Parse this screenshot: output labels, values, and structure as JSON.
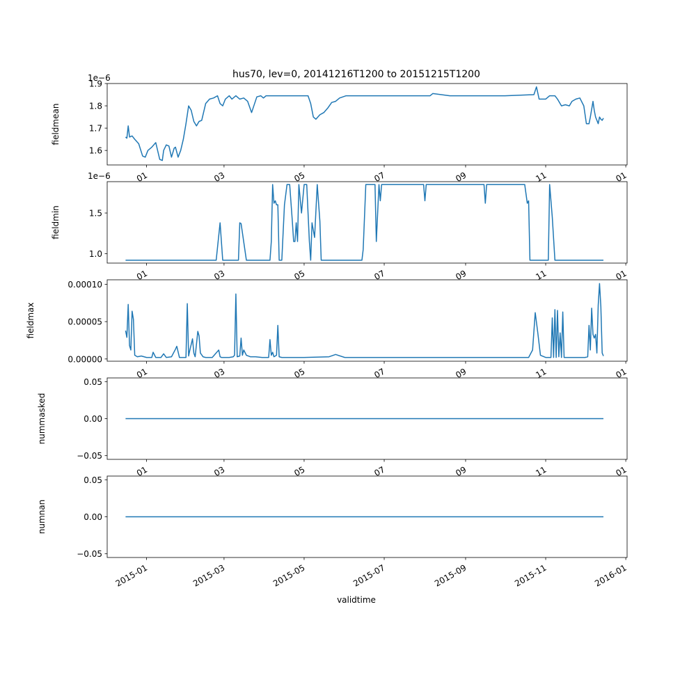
{
  "figure": {
    "title": "hus70, lev=0, 20141216T1200 to 20151215T1200",
    "xlabel": "validtime",
    "line_color": "#1f77b4"
  },
  "chart_data": [
    {
      "type": "line",
      "ylabel": "fieldmean",
      "offset_text": "1e−6",
      "xlim": [
        "2014-12-02",
        "2016-01-02"
      ],
      "ylim": [
        1.535,
        1.9
      ],
      "yticks": [
        1.6,
        1.7,
        1.8,
        1.9
      ],
      "ytick_labels": [
        "1.6",
        "1.7",
        "1.8",
        "1.9"
      ],
      "xticks": [
        "2015-01-01",
        "2015-03-01",
        "2015-05-01",
        "2015-07-01",
        "2015-09-01",
        "2015-11-01",
        "2016-01-01"
      ],
      "xtick_labels": [
        "01",
        "03",
        "05",
        "07",
        "09",
        "11",
        "01"
      ],
      "series": [
        {
          "x": [
            "2014-12-16",
            "2014-12-17",
            "2014-12-18",
            "2014-12-19",
            "2014-12-21",
            "2014-12-23",
            "2014-12-26",
            "2014-12-29",
            "2014-12-31",
            "2015-01-02",
            "2015-01-05",
            "2015-01-08",
            "2015-01-11",
            "2015-01-13",
            "2015-01-14",
            "2015-01-16",
            "2015-01-18",
            "2015-01-20",
            "2015-01-22",
            "2015-01-23",
            "2015-01-25",
            "2015-01-27",
            "2015-01-29",
            "2015-01-31",
            "2015-02-02",
            "2015-02-04",
            "2015-02-06",
            "2015-02-08",
            "2015-02-10",
            "2015-02-12",
            "2015-02-15",
            "2015-02-18",
            "2015-02-21",
            "2015-02-24",
            "2015-02-26",
            "2015-02-28",
            "2015-03-02",
            "2015-03-05",
            "2015-03-07",
            "2015-03-10",
            "2015-03-13",
            "2015-03-16",
            "2015-03-19",
            "2015-03-22",
            "2015-03-26",
            "2015-03-29",
            "2015-03-31",
            "2015-04-02",
            "2015-04-05",
            "2015-04-10",
            "2015-04-20",
            "2015-05-01",
            "2015-05-04",
            "2015-05-06",
            "2015-05-08",
            "2015-05-10",
            "2015-05-13",
            "2015-05-16",
            "2015-05-19",
            "2015-05-22",
            "2015-05-25",
            "2015-05-28",
            "2015-06-02",
            "2015-06-07",
            "2015-06-12",
            "2015-06-16",
            "2015-07-01",
            "2015-07-15",
            "2015-08-01",
            "2015-08-05",
            "2015-08-07",
            "2015-08-20",
            "2015-09-01",
            "2015-10-01",
            "2015-10-23",
            "2015-10-25",
            "2015-10-27",
            "2015-11-01",
            "2015-11-04",
            "2015-11-08",
            "2015-11-10",
            "2015-11-13",
            "2015-11-16",
            "2015-11-19",
            "2015-11-21",
            "2015-11-24",
            "2015-11-27",
            "2015-11-30",
            "2015-12-02",
            "2015-12-04",
            "2015-12-05",
            "2015-12-07",
            "2015-12-08",
            "2015-12-09",
            "2015-12-11",
            "2015-12-12",
            "2015-12-13",
            "2015-12-14",
            "2015-12-15"
          ],
          "y": [
            1.66,
            1.655,
            1.71,
            1.66,
            1.665,
            1.65,
            1.63,
            1.575,
            1.57,
            1.6,
            1.615,
            1.635,
            1.56,
            1.555,
            1.6,
            1.625,
            1.62,
            1.57,
            1.61,
            1.615,
            1.57,
            1.6,
            1.65,
            1.72,
            1.8,
            1.78,
            1.73,
            1.71,
            1.73,
            1.735,
            1.81,
            1.83,
            1.835,
            1.845,
            1.81,
            1.8,
            1.83,
            1.845,
            1.83,
            1.845,
            1.83,
            1.835,
            1.82,
            1.77,
            1.84,
            1.845,
            1.835,
            1.845,
            1.845,
            1.845,
            1.845,
            1.845,
            1.845,
            1.81,
            1.75,
            1.74,
            1.76,
            1.77,
            1.79,
            1.815,
            1.82,
            1.835,
            1.845,
            1.845,
            1.845,
            1.845,
            1.845,
            1.845,
            1.845,
            1.845,
            1.855,
            1.845,
            1.845,
            1.845,
            1.85,
            1.885,
            1.83,
            1.83,
            1.845,
            1.845,
            1.83,
            1.8,
            1.805,
            1.8,
            1.82,
            1.83,
            1.835,
            1.8,
            1.72,
            1.72,
            1.75,
            1.82,
            1.78,
            1.75,
            1.72,
            1.75,
            1.74,
            1.735,
            1.745
          ]
        }
      ]
    },
    {
      "type": "line",
      "ylabel": "fieldmin",
      "offset_text": "1e−6",
      "xlim": [
        "2014-12-02",
        "2016-01-02"
      ],
      "ylim": [
        0.885,
        1.885
      ],
      "yticks": [
        1.0,
        1.5
      ],
      "ytick_labels": [
        "1.0",
        "1.5"
      ],
      "xticks": [
        "2015-01-01",
        "2015-03-01",
        "2015-05-01",
        "2015-07-01",
        "2015-09-01",
        "2015-11-01",
        "2016-01-01"
      ],
      "xtick_labels": [
        "01",
        "03",
        "05",
        "07",
        "09",
        "11",
        "01"
      ],
      "series": [
        {
          "x": [
            "2014-12-16",
            "2015-02-23",
            "2015-02-26",
            "2015-02-28",
            "2015-03-12",
            "2015-03-13",
            "2015-03-14",
            "2015-03-18",
            "2015-04-05",
            "2015-04-06",
            "2015-04-07",
            "2015-04-08",
            "2015-04-09",
            "2015-04-10",
            "2015-04-11",
            "2015-04-12",
            "2015-04-14",
            "2015-04-16",
            "2015-04-18",
            "2015-04-20",
            "2015-04-22",
            "2015-04-23",
            "2015-04-24",
            "2015-04-25",
            "2015-04-26",
            "2015-04-27",
            "2015-04-29",
            "2015-05-01",
            "2015-05-03",
            "2015-05-05",
            "2015-05-06",
            "2015-05-07",
            "2015-05-09",
            "2015-05-11",
            "2015-05-13",
            "2015-05-14",
            "2015-05-16",
            "2015-05-18",
            "2015-06-14",
            "2015-06-15",
            "2015-06-17",
            "2015-06-20",
            "2015-06-24",
            "2015-06-25",
            "2015-06-27",
            "2015-06-28",
            "2015-06-29",
            "2015-06-30",
            "2015-07-01",
            "2015-07-05",
            "2015-07-31",
            "2015-08-01",
            "2015-08-02",
            "2015-08-03",
            "2015-08-05",
            "2015-09-15",
            "2015-09-16",
            "2015-09-17",
            "2015-09-19",
            "2015-10-16",
            "2015-10-18",
            "2015-10-19",
            "2015-10-20",
            "2015-10-22",
            "2015-11-03",
            "2015-11-04",
            "2015-11-06",
            "2015-11-08",
            "2015-11-10",
            "2015-12-15"
          ],
          "y": [
            0.92,
            0.92,
            1.38,
            0.92,
            0.92,
            1.38,
            1.37,
            0.92,
            0.92,
            1.15,
            1.85,
            1.62,
            1.65,
            1.6,
            1.6,
            0.92,
            0.92,
            1.6,
            1.85,
            1.85,
            1.4,
            1.15,
            1.15,
            1.38,
            1.15,
            1.85,
            1.5,
            1.85,
            1.85,
            1.15,
            0.92,
            1.38,
            1.2,
            1.85,
            1.4,
            0.92,
            0.92,
            0.92,
            0.92,
            1.05,
            1.85,
            1.85,
            1.85,
            1.15,
            1.85,
            1.65,
            1.85,
            1.85,
            1.85,
            1.85,
            1.85,
            1.65,
            1.85,
            1.85,
            1.85,
            1.85,
            1.62,
            1.85,
            1.85,
            1.85,
            1.62,
            1.65,
            0.92,
            0.92,
            0.92,
            1.85,
            1.45,
            0.92,
            0.92,
            0.92
          ]
        }
      ]
    },
    {
      "type": "line",
      "ylabel": "fieldmax",
      "xlim": [
        "2014-12-02",
        "2016-01-02"
      ],
      "ylim": [
        -3e-06,
        0.000106
      ],
      "yticks": [
        0,
        5e-05,
        0.0001
      ],
      "ytick_labels": [
        "0.00000",
        "0.00005",
        "0.00010"
      ],
      "xticks": [
        "2015-01-01",
        "2015-03-01",
        "2015-05-01",
        "2015-07-01",
        "2015-09-01",
        "2015-11-01",
        "2016-01-01"
      ],
      "xtick_labels": [
        "01",
        "03",
        "05",
        "07",
        "09",
        "11",
        "01"
      ],
      "series": [
        {
          "x": [
            "2014-12-16",
            "2014-12-17",
            "2014-12-18",
            "2014-12-19",
            "2014-12-20",
            "2014-12-21",
            "2014-12-22",
            "2014-12-23",
            "2014-12-25",
            "2014-12-28",
            "2015-01-01",
            "2015-01-05",
            "2015-01-06",
            "2015-01-08",
            "2015-01-12",
            "2015-01-14",
            "2015-01-16",
            "2015-01-20",
            "2015-01-23",
            "2015-01-24",
            "2015-01-26",
            "2015-01-28",
            "2015-01-31",
            "2015-02-01",
            "2015-02-02",
            "2015-02-03",
            "2015-02-05",
            "2015-02-06",
            "2015-02-07",
            "2015-02-09",
            "2015-02-10",
            "2015-02-11",
            "2015-02-13",
            "2015-02-15",
            "2015-02-20",
            "2015-02-25",
            "2015-02-26",
            "2015-02-27",
            "2015-03-05",
            "2015-03-08",
            "2015-03-09",
            "2015-03-10",
            "2015-03-11",
            "2015-03-13",
            "2015-03-14",
            "2015-03-15",
            "2015-03-16",
            "2015-03-18",
            "2015-03-21",
            "2015-03-25",
            "2015-03-30",
            "2015-04-04",
            "2015-04-05",
            "2015-04-06",
            "2015-04-07",
            "2015-04-08",
            "2015-04-10",
            "2015-04-11",
            "2015-04-12",
            "2015-04-14",
            "2015-05-01",
            "2015-05-20",
            "2015-05-25",
            "2015-06-01",
            "2015-08-01",
            "2015-10-01",
            "2015-10-19",
            "2015-10-22",
            "2015-10-24",
            "2015-10-26",
            "2015-10-28",
            "2015-11-01",
            "2015-11-05",
            "2015-11-06",
            "2015-11-07",
            "2015-11-08",
            "2015-11-09",
            "2015-11-10",
            "2015-11-11",
            "2015-11-12",
            "2015-11-13",
            "2015-11-14",
            "2015-11-15",
            "2015-11-17",
            "2015-11-22",
            "2015-12-01",
            "2015-12-03",
            "2015-12-04",
            "2015-12-05",
            "2015-12-06",
            "2015-12-07",
            "2015-12-08",
            "2015-12-09",
            "2015-12-10",
            "2015-12-11",
            "2015-12-12",
            "2015-12-13",
            "2015-12-14",
            "2015-12-15"
          ],
          "y": [
            3.8e-05,
            2.9e-05,
            7.3e-05,
            1.8e-05,
            1.2e-05,
            6.4e-05,
            5.3e-05,
            5e-06,
            3e-06,
            4e-06,
            2e-06,
            2e-06,
            9e-06,
            2e-06,
            2e-06,
            7e-06,
            2e-06,
            3e-06,
            1.3e-05,
            1.7e-05,
            2e-06,
            2e-06,
            2e-06,
            7.4e-05,
            4e-06,
            1.2e-05,
            2.7e-05,
            8e-06,
            3e-06,
            3.7e-05,
            3.1e-05,
            8e-06,
            3e-06,
            2e-06,
            2e-06,
            1.2e-05,
            3e-06,
            2e-06,
            2e-06,
            3e-06,
            5e-06,
            8.7e-05,
            3e-06,
            4e-06,
            2.8e-05,
            5e-06,
            1.2e-05,
            5e-06,
            3e-06,
            3e-06,
            2e-06,
            2e-06,
            2.6e-05,
            5e-06,
            9e-06,
            3e-06,
            5e-06,
            4.5e-05,
            3e-06,
            2e-06,
            2e-06,
            3e-06,
            6e-06,
            2e-06,
            2e-06,
            2e-06,
            2e-06,
            1.2e-05,
            6.2e-05,
            3.5e-05,
            5e-06,
            2e-06,
            2e-06,
            5.5e-05,
            2e-06,
            6.6e-05,
            2e-06,
            6.5e-05,
            3e-06,
            3.5e-05,
            2e-06,
            6.3e-05,
            2e-06,
            2e-06,
            2e-06,
            2e-06,
            3e-06,
            4.5e-05,
            1.2e-05,
            6.8e-05,
            3.3e-05,
            2.8e-05,
            3.3e-05,
            8e-06,
            7.2e-05,
            0.000101,
            7e-05,
            8e-06,
            4e-06
          ]
        }
      ]
    },
    {
      "type": "line",
      "ylabel": "nummasked",
      "xlim": [
        "2014-12-02",
        "2016-01-02"
      ],
      "ylim": [
        -0.055,
        0.055
      ],
      "yticks": [
        -0.05,
        0,
        0.05
      ],
      "ytick_labels": [
        "−0.05",
        "0.00",
        "0.05"
      ],
      "xticks": [
        "2015-01-01",
        "2015-03-01",
        "2015-05-01",
        "2015-07-01",
        "2015-09-01",
        "2015-11-01",
        "2016-01-01"
      ],
      "xtick_labels": [
        "01",
        "03",
        "05",
        "07",
        "09",
        "11",
        "01"
      ],
      "series": [
        {
          "x": [
            "2014-12-16",
            "2015-12-15"
          ],
          "y": [
            0,
            0
          ]
        }
      ]
    },
    {
      "type": "line",
      "ylabel": "numnan",
      "xlim": [
        "2014-12-02",
        "2016-01-02"
      ],
      "ylim": [
        -0.055,
        0.055
      ],
      "yticks": [
        -0.05,
        0,
        0.05
      ],
      "ytick_labels": [
        "−0.05",
        "0.00",
        "0.05"
      ],
      "xticks": [
        "2015-01-01",
        "2015-03-01",
        "2015-05-01",
        "2015-07-01",
        "2015-09-01",
        "2015-11-01",
        "2016-01-01"
      ],
      "xtick_labels": [
        "2015-01",
        "2015-03",
        "2015-05",
        "2015-07",
        "2015-09",
        "2015-11",
        "2016-01"
      ],
      "series": [
        {
          "x": [
            "2014-12-16",
            "2015-12-15"
          ],
          "y": [
            0,
            0
          ]
        }
      ]
    }
  ]
}
